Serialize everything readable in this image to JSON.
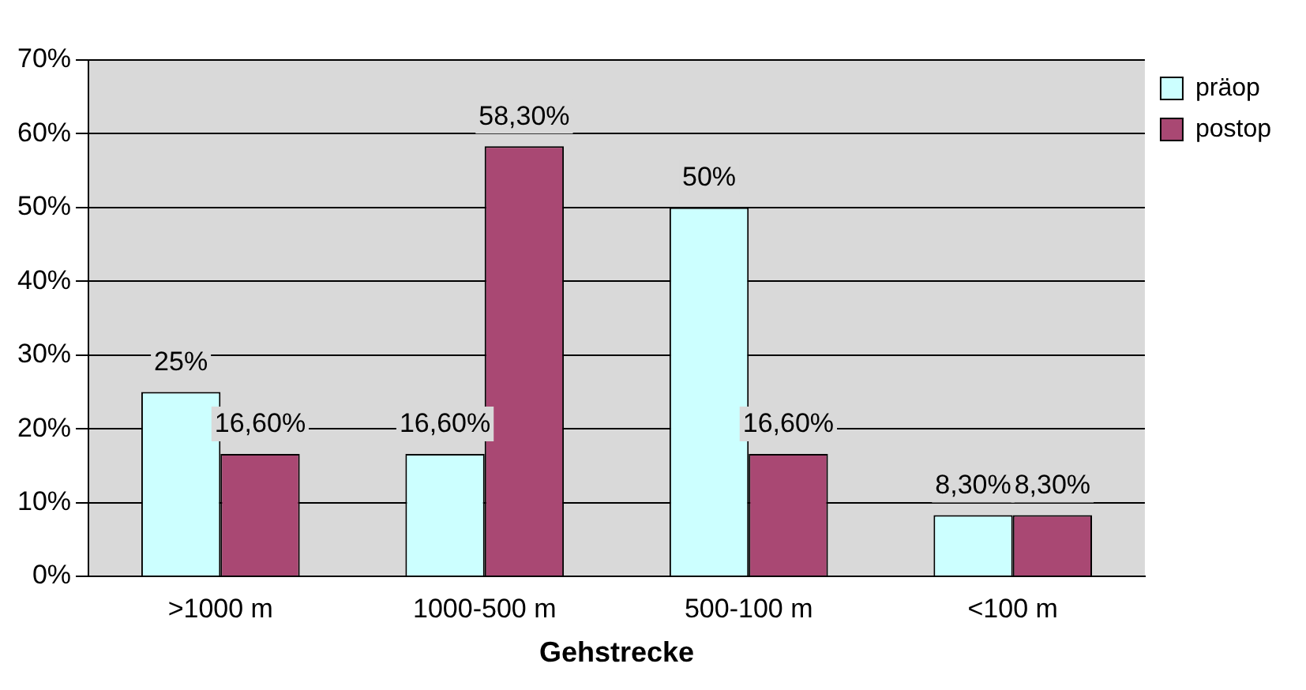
{
  "chart_data": {
    "type": "bar",
    "xlabel": "Gehstrecke",
    "categories": [
      ">1000 m",
      "1000-500 m",
      "500-100 m",
      "<100 m"
    ],
    "series": [
      {
        "name": "präop",
        "color": "#ccffff",
        "values": [
          25,
          16.6,
          50,
          8.3
        ],
        "value_labels": [
          "25%",
          "16,60%",
          "50%",
          "8,30%"
        ]
      },
      {
        "name": "postop",
        "color": "#a94873",
        "values": [
          16.6,
          58.3,
          16.6,
          8.3
        ],
        "value_labels": [
          "16,60%",
          "58,30%",
          "16,60%",
          "8,30%"
        ]
      }
    ],
    "ylim": [
      0,
      70
    ],
    "yticks": [
      {
        "value": 0,
        "label": "0%"
      },
      {
        "value": 10,
        "label": "10%"
      },
      {
        "value": 20,
        "label": "20%"
      },
      {
        "value": 30,
        "label": "30%"
      },
      {
        "value": 40,
        "label": "40%"
      },
      {
        "value": 50,
        "label": "50%"
      },
      {
        "value": 60,
        "label": "60%"
      },
      {
        "value": 70,
        "label": "70%"
      }
    ],
    "grid": "y",
    "legend": "top right"
  }
}
